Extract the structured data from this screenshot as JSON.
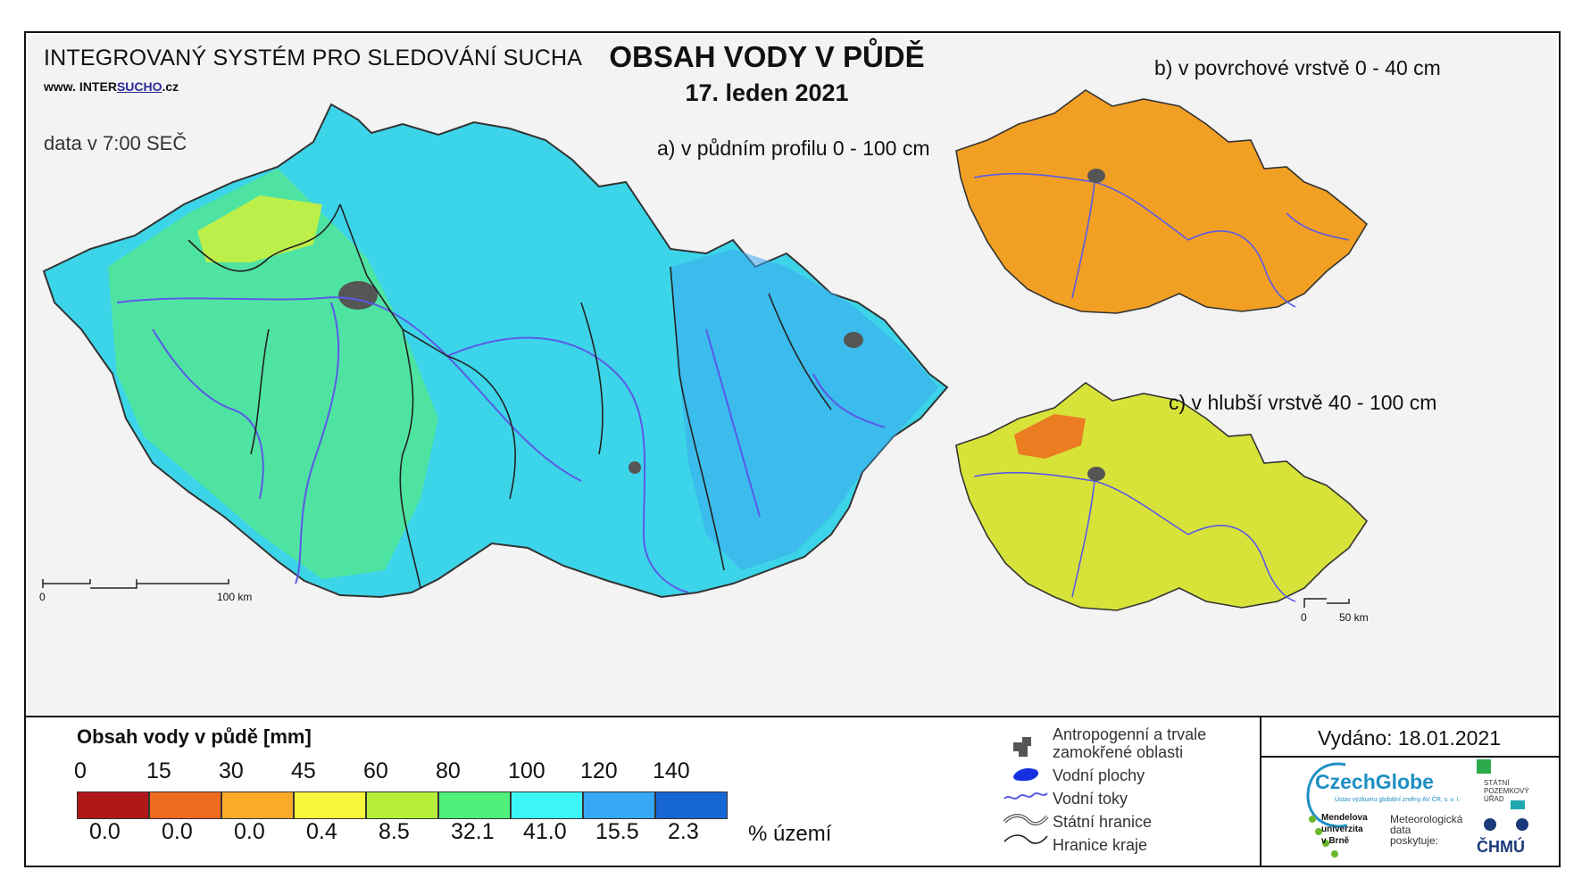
{
  "header": {
    "system_title": "INTEGROVANÝ SYSTÉM PRO SLEDOVÁNÍ SUCHA",
    "website_prefix": "www. INTER",
    "website_underlined": "SUCHO",
    "website_suffix": ".cz",
    "data_time": "data v 7:00 SEČ",
    "main_title": "OBSAH VODY V PŮDĚ",
    "date": "17. leden 2021"
  },
  "maps": {
    "a_label": "a) v půdním profilu 0 - 100 cm",
    "b_label": "b) v povrchové vrstvě 0 - 40 cm",
    "c_label": "c) v hlubší vrstvě 40 - 100 cm",
    "a_scale": {
      "start": "0",
      "end": "100 km"
    },
    "c_scale": {
      "start": "0",
      "end": "50 km"
    },
    "a_color": "#35c8e8",
    "b_color": "#f2a024",
    "c_color": "#d8e33a"
  },
  "legend": {
    "title": "Obsah vody v půdě  [mm]",
    "ticks": [
      "0",
      "15",
      "30",
      "45",
      "60",
      "80",
      "100",
      "120",
      "140"
    ],
    "colors": [
      "#b01818",
      "#ee6a1e",
      "#fcaa2a",
      "#f8f63a",
      "#b6ef3a",
      "#4ff07a",
      "#3cf6f6",
      "#36a8f5",
      "#1666d6"
    ],
    "percentages": [
      "0.0",
      "0.0",
      "0.0",
      "0.4",
      "8.5",
      "32.1",
      "41.0",
      "15.5",
      "2.3"
    ],
    "percent_unit": "% území"
  },
  "symbols": {
    "anthropogenic": "Antropogenní a trvale zamokřené oblasti",
    "water_bodies": "Vodní plochy",
    "rivers": "Vodní toky",
    "state_border": "Státní hranice",
    "region_border": "Hranice kraje",
    "urban_color": "#555555",
    "water_color": "#1530e0",
    "river_color": "#5a5ae6"
  },
  "footer": {
    "issued": "Vydáno: 18.01.2021",
    "czechglobe": "CzechGlobe",
    "czechglobe_sub": "Ústav výzkumu globální změny AV ČR, v. v. i.",
    "spu_line1": "STÁTNÍ",
    "spu_line2": "POZEMKOVÝ",
    "spu_line3": "ÚŘAD",
    "mendel_line1": "Mendelova",
    "mendel_line2": "univerzita",
    "mendel_line3": "v Brně",
    "meteo_line1": "Meteorologická",
    "meteo_line2": "data",
    "meteo_line3": "poskytuje:",
    "chmu": "ČHMÚ"
  }
}
